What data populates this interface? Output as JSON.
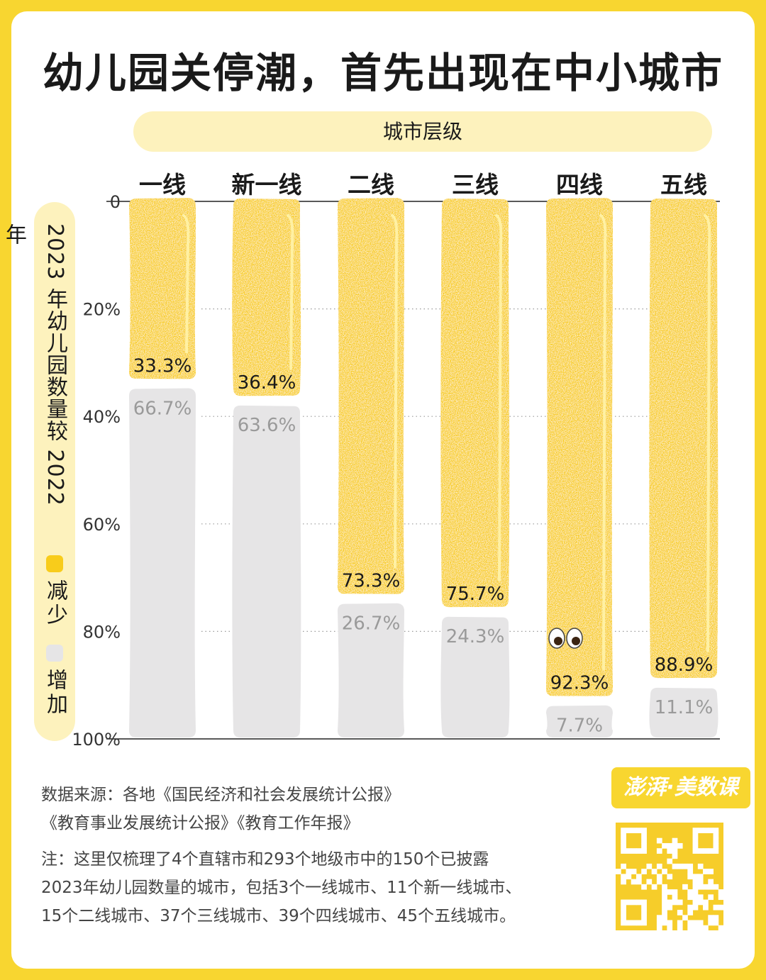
{
  "title": "幼儿园关停潮，首先出现在中小城市",
  "x_axis_title": "城市层级",
  "legend": {
    "title": "2023 年幼儿园数量较 2022 年",
    "decrease_label": "减少",
    "increase_label": "增加",
    "decrease_color": "#f8cc1b",
    "increase_color": "#e6e5e6"
  },
  "chart_data": {
    "type": "bar",
    "stacked": true,
    "categories": [
      "一线",
      "新一线",
      "二线",
      "三线",
      "四线",
      "五线"
    ],
    "series": [
      {
        "name": "减少",
        "values": [
          33.3,
          36.4,
          73.3,
          75.7,
          92.3,
          88.9
        ]
      },
      {
        "name": "增加",
        "values": [
          66.7,
          63.6,
          26.7,
          24.3,
          7.7,
          11.1
        ]
      }
    ],
    "y_ticks": [
      "0",
      "20%",
      "40%",
      "60%",
      "80%",
      "100%"
    ],
    "ylim": [
      0,
      100
    ],
    "y_inverted": true,
    "grid": true
  },
  "source": {
    "line1": "数据来源：各地《国民经济和社会发展统计公报》",
    "line2": "《教育事业发展统计公报》《教育工作年报》"
  },
  "note": {
    "line1": "注：这里仅梳理了4个直辖市和293个地级市中的150个已披露",
    "line2": "2023年幼儿园数量的城市，包括3个一线城市、11个新一线城市、",
    "line3": "15个二线城市、37个三线城市、39个四线城市、45个五线城市。"
  },
  "brand": {
    "text": "澎湃·美数课",
    "icon": "qr-code-icon"
  }
}
